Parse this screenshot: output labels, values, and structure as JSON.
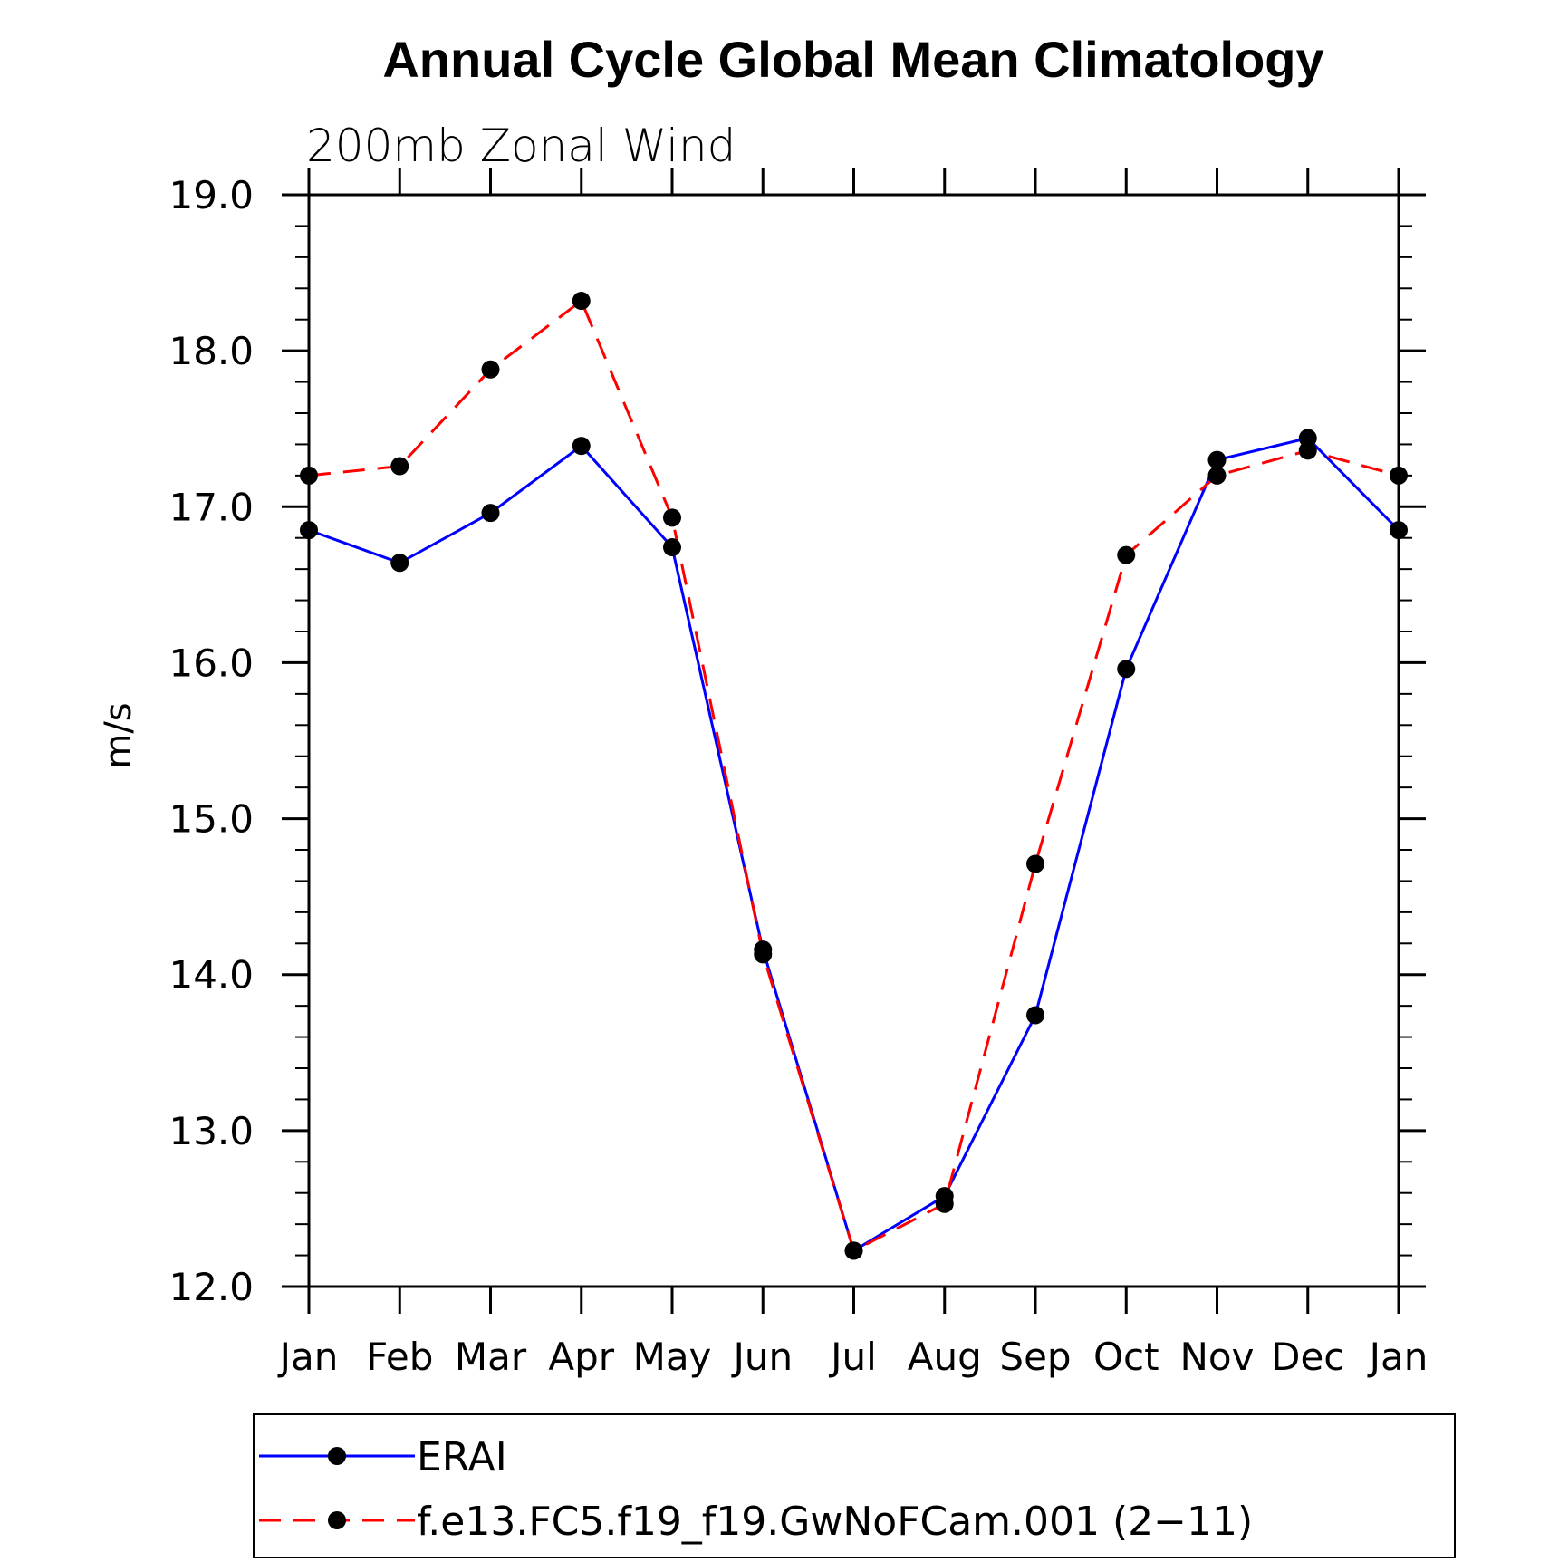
{
  "chart_data": {
    "type": "line",
    "title": "Annual Cycle Global Mean Climatology",
    "subtitle": "200mb Zonal Wind",
    "xlabel": "",
    "ylabel": "m/s",
    "categories": [
      "Jan",
      "Feb",
      "Mar",
      "Apr",
      "May",
      "Jun",
      "Jul",
      "Aug",
      "Sep",
      "Oct",
      "Nov",
      "Dec",
      "Jan"
    ],
    "ylim": [
      12.0,
      19.0
    ],
    "yticks": [
      "12.0",
      "13.0",
      "14.0",
      "15.0",
      "16.0",
      "17.0",
      "18.0",
      "19.0"
    ],
    "grid": false,
    "legend_position": "bottom",
    "series": [
      {
        "name": "ERAI",
        "color": "#0000ff",
        "dash": "solid",
        "marker": "circle",
        "values": [
          16.85,
          16.64,
          16.96,
          17.39,
          16.74,
          14.16,
          12.23,
          12.58,
          13.74,
          15.96,
          17.3,
          17.44,
          16.85
        ]
      },
      {
        "name": "f.e13.FC5.f19_f19.GwNoFCam.001 (2−11)",
        "color": "#ff0000",
        "dash": "dashed",
        "marker": "circle",
        "values": [
          17.2,
          17.26,
          17.88,
          18.32,
          16.93,
          14.13,
          12.23,
          12.53,
          14.71,
          16.69,
          17.2,
          17.36,
          17.2
        ]
      }
    ]
  }
}
